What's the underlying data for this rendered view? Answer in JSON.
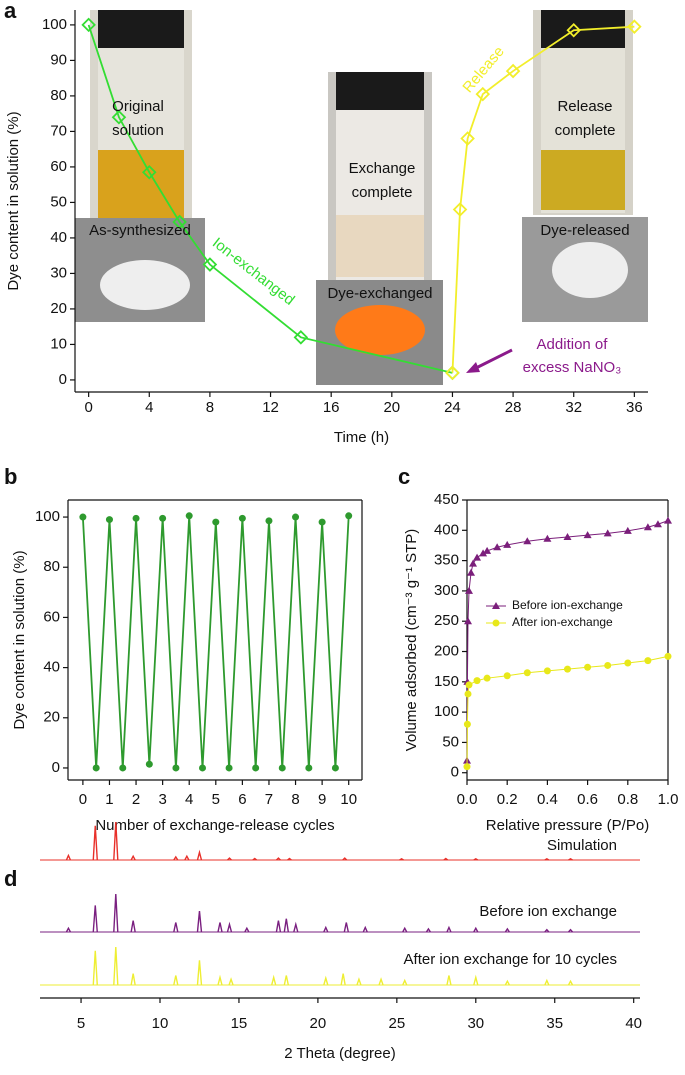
{
  "chart_data": [
    {
      "type": "line",
      "panel": "a",
      "x_label": "Time (h)",
      "y_label": "Dye content in solution (%)",
      "xlim": [
        -0.9,
        36.9
      ],
      "ylim": [
        -3.4,
        104.2
      ],
      "xticks": [
        0,
        4,
        8,
        12,
        16,
        20,
        24,
        28,
        32,
        36
      ],
      "yticks": [
        0,
        10,
        20,
        30,
        40,
        50,
        60,
        70,
        80,
        90,
        100
      ],
      "series": [
        {
          "color": "#33dd33",
          "marker": "diamond",
          "x": [
            0,
            2,
            4,
            6,
            8,
            14,
            24
          ],
          "values": [
            100,
            74,
            58.5,
            44.5,
            32.5,
            12,
            2
          ]
        },
        {
          "color": "#f2ee2b",
          "marker": "diamond",
          "x": [
            24,
            24.5,
            25,
            26,
            28,
            32,
            36
          ],
          "values": [
            2,
            48,
            68,
            80.5,
            87,
            98.5,
            99.5
          ]
        }
      ],
      "photo_labels": [
        [
          "Original",
          "solution"
        ],
        [
          "As-synthesized"
        ],
        [
          "Exchange",
          "complete"
        ],
        [
          "Dye-exchanged"
        ],
        [
          "Release",
          "complete"
        ],
        [
          "Dye-released"
        ]
      ],
      "annotations": [
        {
          "lines": [
            "Ion-exchanged"
          ],
          "color": "#33dd33"
        },
        {
          "lines": [
            "Release"
          ],
          "color": "#f2ee2b"
        },
        {
          "lines": [
            "Addition of",
            "excess NaNO₃"
          ],
          "color": "#8b1a8b"
        }
      ]
    },
    {
      "type": "line",
      "panel": "b",
      "x_label": "Number of exchange-release cycles",
      "y_label": "Dye content in solution (%)",
      "xlim": [
        -0.56,
        10.5
      ],
      "ylim": [
        -4.8,
        106.8
      ],
      "xticks": [
        0,
        1,
        2,
        3,
        4,
        5,
        6,
        7,
        8,
        9,
        10
      ],
      "yticks": [
        0,
        20,
        40,
        60,
        80,
        100
      ],
      "series": [
        {
          "color": "#2e9a2e",
          "marker": "diamond",
          "x": [
            0,
            0.5,
            1,
            1.5,
            2,
            2.5,
            3,
            3.5,
            4,
            4.5,
            5,
            5.5,
            6,
            6.5,
            7,
            7.5,
            8,
            8.5,
            9,
            9.5,
            10
          ],
          "values": [
            100,
            0,
            99,
            0,
            99.5,
            1.5,
            99.5,
            0,
            100.5,
            0,
            98,
            0,
            99.5,
            0,
            98.5,
            0,
            100,
            0,
            98,
            0,
            100.5
          ]
        }
      ]
    },
    {
      "type": "line",
      "panel": "c",
      "x_label": "Relative pressure (P/Po)",
      "y_label": "Volume adsorbed (cm⁻³ g⁻¹ STP)",
      "xlim": [
        0,
        1.0
      ],
      "ylim": [
        -12,
        450
      ],
      "xticks": [
        {
          "value": 0,
          "label": "0.0"
        },
        {
          "value": 0.2,
          "label": "0.2"
        },
        {
          "value": 0.4,
          "label": "0.4"
        },
        {
          "value": 0.6,
          "label": "0.6"
        },
        {
          "value": 0.8,
          "label": "0.8"
        },
        {
          "value": 1.0,
          "label": "1.0"
        }
      ],
      "yticks": [
        0,
        50,
        100,
        150,
        200,
        250,
        300,
        350,
        400,
        450
      ],
      "series": [
        {
          "name": "Before ion-exchange",
          "color": "#7b1f7b",
          "marker": "triangle",
          "x": [
            0,
            0.002,
            0.005,
            0.01,
            0.02,
            0.03,
            0.05,
            0.08,
            0.1,
            0.15,
            0.2,
            0.3,
            0.4,
            0.5,
            0.6,
            0.7,
            0.8,
            0.9,
            0.95,
            1.0
          ],
          "values": [
            20,
            150,
            250,
            300,
            330,
            345,
            355,
            362,
            366,
            372,
            376,
            382,
            386,
            389,
            392,
            395,
            399,
            405,
            410,
            416
          ]
        },
        {
          "name": "After ion-exchange",
          "color": "#e8e81a",
          "marker": "circle",
          "x": [
            0,
            0.002,
            0.005,
            0.01,
            0.05,
            0.1,
            0.2,
            0.3,
            0.4,
            0.5,
            0.6,
            0.7,
            0.8,
            0.9,
            1.0
          ],
          "values": [
            10,
            80,
            130,
            145,
            152,
            156,
            160,
            165,
            168,
            171,
            174,
            177,
            181,
            185,
            192
          ]
        }
      ]
    },
    {
      "type": "spectrum",
      "panel": "d",
      "x_label": "2 Theta (degree)",
      "xlim": [
        2.4,
        40.4
      ],
      "xticks": [
        5,
        10,
        15,
        20,
        25,
        30,
        35,
        40
      ],
      "series": [
        {
          "name": "Simulation",
          "color": "#e8302a",
          "x": [
            4.2,
            5.9,
            7.2,
            8.3,
            11.0,
            11.7,
            12.5,
            14.4,
            16.0,
            17.5,
            18.2,
            21.7,
            25.3,
            28.1,
            30.0,
            34.5,
            36.0
          ],
          "values": [
            12,
            90,
            100,
            10,
            8,
            10,
            20,
            5,
            4,
            5,
            4,
            5,
            3,
            4,
            3,
            3,
            3
          ]
        },
        {
          "name": "Before ion exchange",
          "color": "#7a2080",
          "x": [
            4.2,
            5.9,
            7.2,
            8.3,
            11.0,
            12.5,
            13.8,
            14.4,
            15.5,
            17.5,
            18.0,
            18.6,
            20.5,
            21.8,
            23.0,
            25.5,
            27.0,
            28.3,
            30.0,
            32.0,
            34.5,
            36.0
          ],
          "values": [
            10,
            70,
            100,
            30,
            25,
            55,
            25,
            20,
            10,
            30,
            35,
            20,
            12,
            25,
            12,
            10,
            8,
            12,
            10,
            8,
            6,
            6
          ]
        },
        {
          "name": "After ion exchange for 10 cycles",
          "color": "#eeee33",
          "x": [
            5.9,
            7.2,
            8.3,
            11.0,
            12.5,
            13.8,
            14.5,
            17.2,
            18.0,
            20.5,
            21.6,
            22.6,
            24.0,
            25.5,
            28.3,
            30.0,
            32.0,
            34.5,
            36.0
          ],
          "values": [
            90,
            100,
            30,
            25,
            65,
            20,
            15,
            20,
            25,
            18,
            30,
            15,
            15,
            12,
            25,
            20,
            10,
            12,
            10
          ]
        }
      ]
    }
  ]
}
